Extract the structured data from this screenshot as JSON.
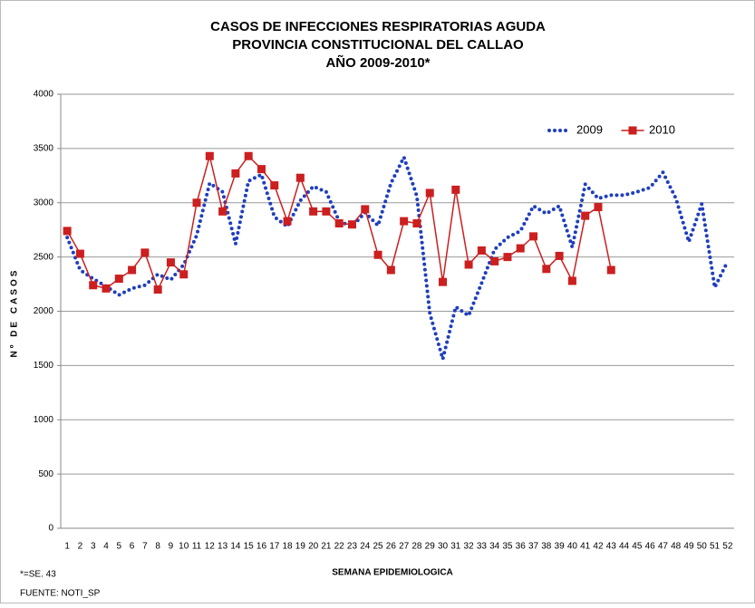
{
  "chart_data": {
    "type": "line",
    "title": [
      "CASOS DE INFECCIONES RESPIRATORIAS AGUDA",
      "PROVINCIA CONSTITUCIONAL DEL CALLAO",
      "AÑO 2009-2010*"
    ],
    "x_label": "SEMANA EPIDEMIOLOGICA",
    "y_label": "Nº DE CASOS",
    "footnotes": [
      "*=SE. 43",
      "FUENTE: NOTI_SP"
    ],
    "categories": [
      1,
      2,
      3,
      4,
      5,
      6,
      7,
      8,
      9,
      10,
      11,
      12,
      13,
      14,
      15,
      16,
      17,
      18,
      19,
      20,
      21,
      22,
      23,
      24,
      25,
      26,
      27,
      28,
      29,
      30,
      31,
      32,
      33,
      34,
      35,
      36,
      37,
      38,
      39,
      40,
      41,
      42,
      43,
      44,
      45,
      46,
      47,
      48,
      49,
      50,
      51,
      52
    ],
    "series": [
      {
        "name": "2009",
        "color": "#1f3fbf",
        "style": "dotted",
        "values": [
          2680,
          2380,
          2300,
          2230,
          2150,
          2210,
          2240,
          2340,
          2290,
          2430,
          2700,
          3180,
          3100,
          2620,
          3200,
          3260,
          2870,
          2780,
          3020,
          3150,
          3100,
          2830,
          2780,
          2910,
          2790,
          3180,
          3420,
          3060,
          1980,
          1560,
          2040,
          1960,
          2260,
          2570,
          2680,
          2740,
          2970,
          2900,
          2970,
          2590,
          3170,
          3040,
          3070,
          3070,
          3100,
          3140,
          3280,
          3040,
          2640,
          2990,
          2220,
          2460
        ]
      },
      {
        "name": "2010",
        "color": "#cc1f1f",
        "style": "line-square",
        "values": [
          2740,
          2530,
          2240,
          2210,
          2300,
          2380,
          2540,
          2200,
          2450,
          2340,
          3000,
          3430,
          2920,
          3270,
          3430,
          3310,
          3160,
          2830,
          3230,
          2920,
          2920,
          2810,
          2800,
          2940,
          2520,
          2380,
          2830,
          2810,
          3090,
          2270,
          3120,
          2430,
          2560,
          2460,
          2500,
          2580,
          2690,
          2390,
          2510,
          2280,
          2880,
          2960,
          2380,
          null,
          null,
          null,
          null,
          null,
          null,
          null,
          null,
          null
        ]
      }
    ],
    "ylim": [
      0,
      4000
    ],
    "yticks": [
      0,
      500,
      1000,
      1500,
      2000,
      2500,
      3000,
      3500,
      4000
    ],
    "grid": true,
    "legend": "top-right"
  }
}
